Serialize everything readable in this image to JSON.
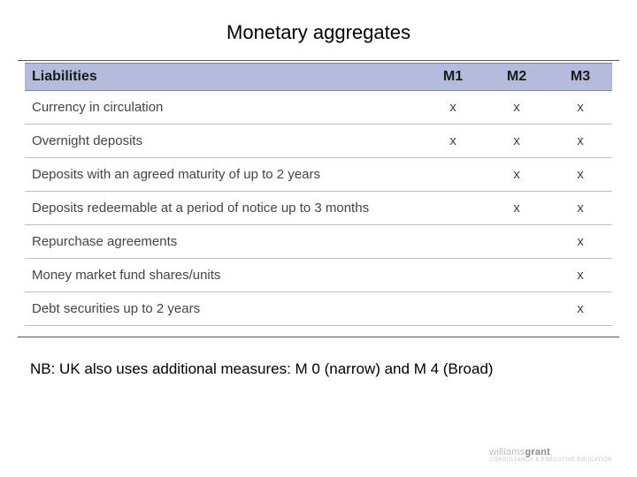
{
  "title": "Monetary aggregates",
  "table": {
    "header": {
      "label": "Liabilities",
      "cols": [
        "M1",
        "M2",
        "M3"
      ]
    },
    "rows": [
      {
        "label": "Currency in circulation",
        "m1": "x",
        "m2": "x",
        "m3": "x"
      },
      {
        "label": "Overnight deposits",
        "m1": "x",
        "m2": "x",
        "m3": "x"
      },
      {
        "label": "Deposits with an agreed maturity of up to 2 years",
        "m1": "",
        "m2": "x",
        "m3": "x"
      },
      {
        "label": "Deposits redeemable at a period of notice up to 3 months",
        "m1": "",
        "m2": "x",
        "m3": "x"
      },
      {
        "label": "Repurchase agreements",
        "m1": "",
        "m2": "",
        "m3": "x"
      },
      {
        "label": "Money market fund shares/units",
        "m1": "",
        "m2": "",
        "m3": "x"
      },
      {
        "label": "Debt securities up to 2 years",
        "m1": "",
        "m2": "",
        "m3": "x"
      }
    ],
    "colors": {
      "header_bg": "#b4bbdc",
      "row_border": "#bfbfbf",
      "text": "#444444"
    }
  },
  "footnote": "NB: UK also uses additional measures: M 0 (narrow) and M 4 (Broad)",
  "logo": {
    "part1": "williams",
    "part2": "grant",
    "sub": "CONSULTANCY & EXECUTIVE EDUCATION"
  }
}
